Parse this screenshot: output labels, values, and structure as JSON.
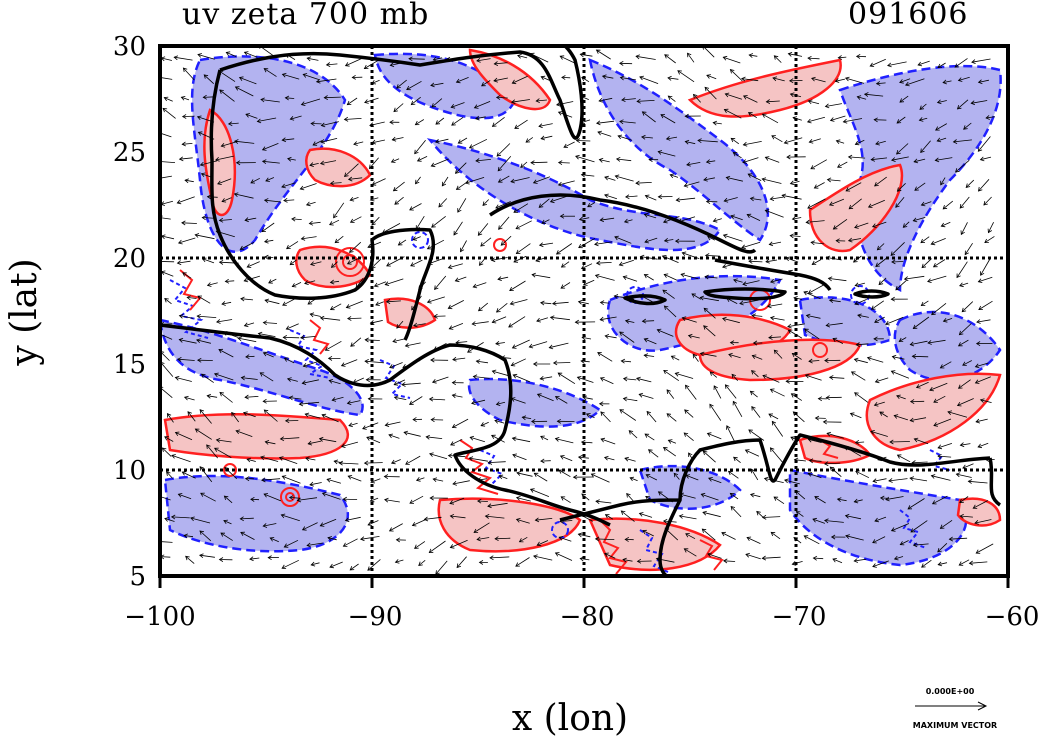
{
  "title_left": "uv zeta 700 mb",
  "title_right": "091606",
  "x_axis_label": "x (lon)",
  "y_axis_label": "y (lat)",
  "x_ticks": [
    "−100",
    "−90",
    "−80",
    "−70",
    "−60"
  ],
  "y_ticks": [
    "30",
    "25",
    "20",
    "15",
    "10",
    "5"
  ],
  "vector_key": {
    "value_label": "0.000E+00",
    "caption": "MAXIMUM VECTOR"
  },
  "chart_data": {
    "type": "heatmap",
    "field": "vorticity (zeta) with wind vectors (uv)",
    "level": "700 mb",
    "xlim": [
      -100,
      -60
    ],
    "ylim": [
      5,
      30
    ],
    "grid_lon": [
      -90,
      -80,
      -70
    ],
    "grid_lat": [
      10,
      20
    ],
    "colors": {
      "positive_fill": "#f5c4c4",
      "positive_contour": "#ff2020",
      "negative_fill": "#b3b3f0",
      "negative_contour": "#2020ff",
      "coastline": "#000000"
    }
  }
}
